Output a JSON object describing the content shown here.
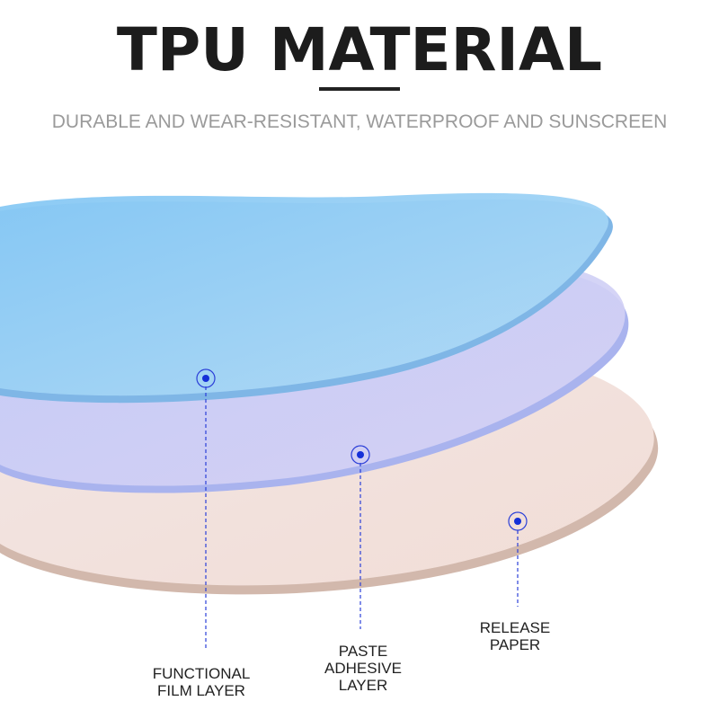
{
  "header": {
    "title": "TPU MATERIAL",
    "subtitle": "DURABLE AND WEAR-RESISTANT, WATERPROOF AND SUNSCREEN"
  },
  "layers": [
    {
      "lines": [
        "FUNCTIONAL",
        "FILM LAYER"
      ]
    },
    {
      "lines": [
        "PASTE",
        "ADHESIVE",
        "LAYER"
      ]
    },
    {
      "lines": [
        "RELEASE",
        "PAPER"
      ]
    }
  ]
}
